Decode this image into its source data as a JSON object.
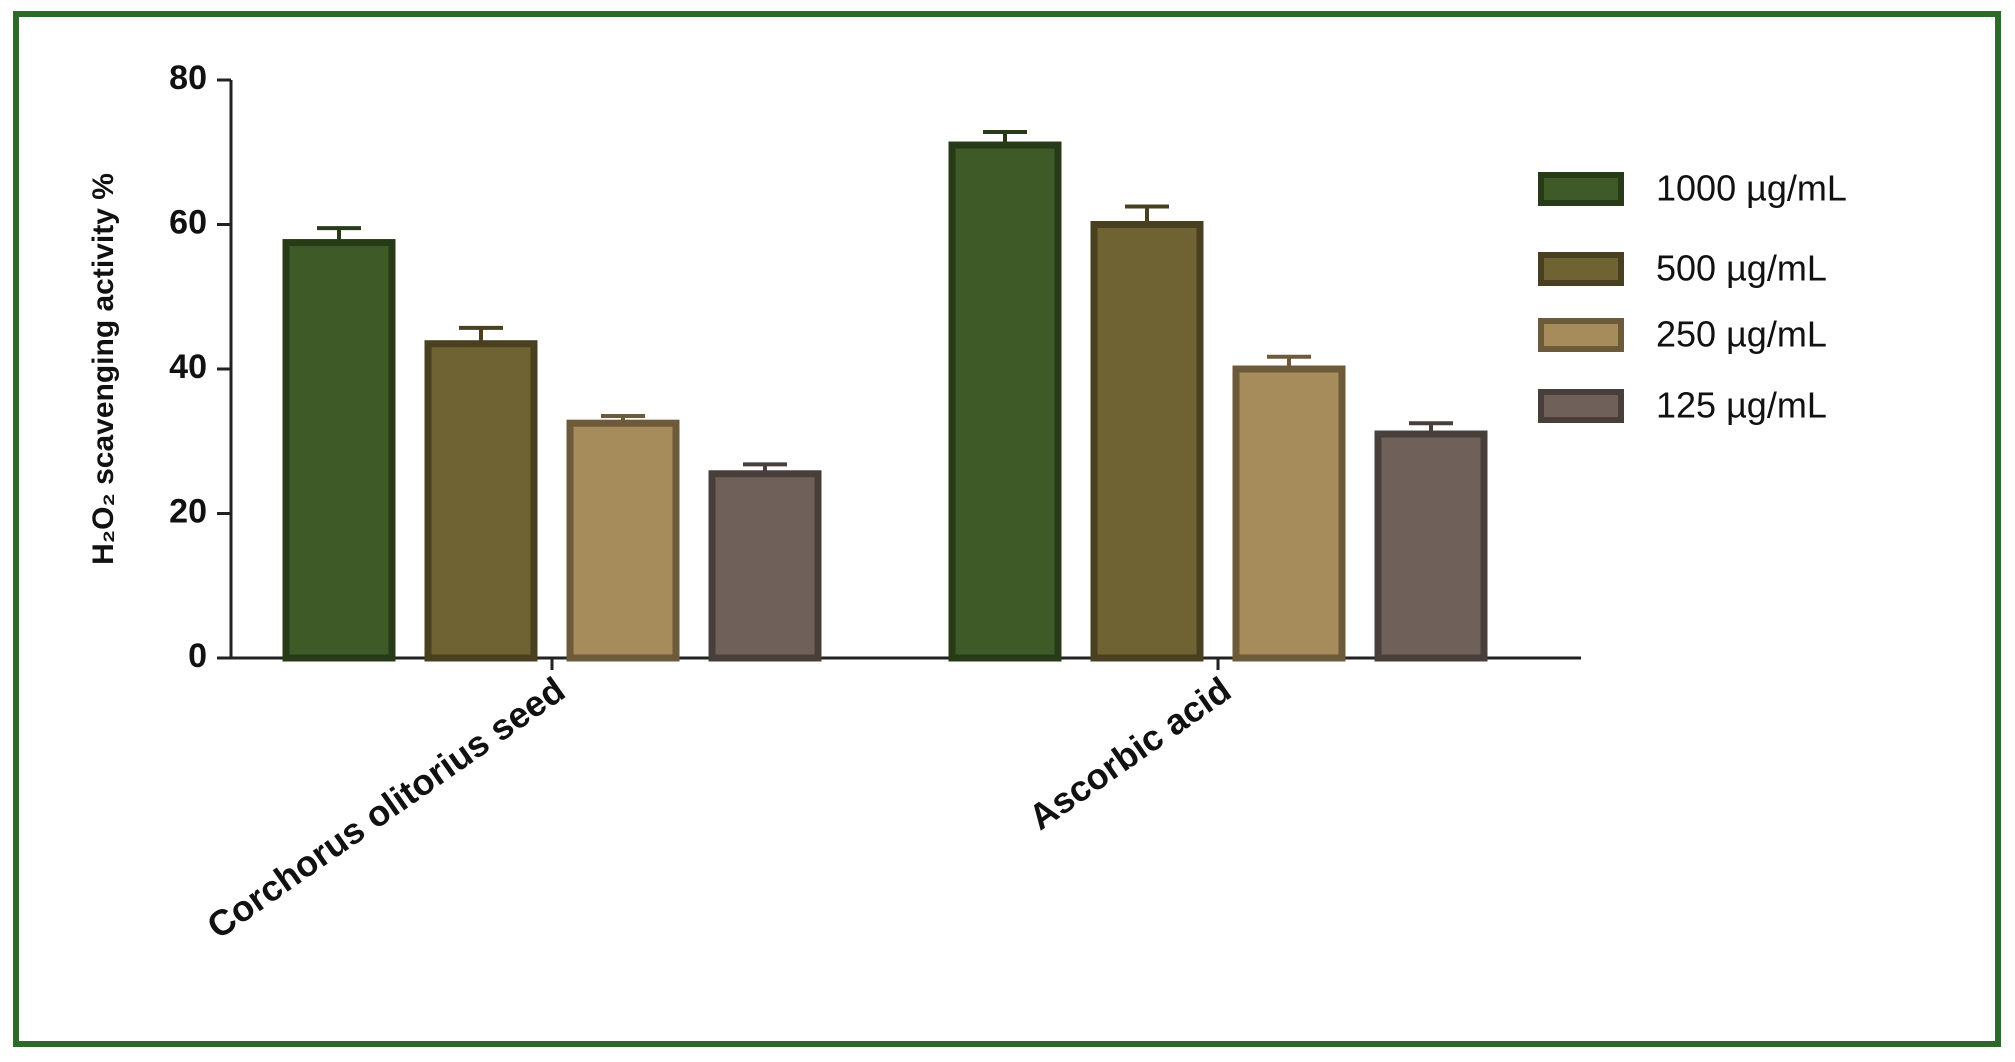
{
  "chart_data": {
    "type": "bar",
    "y_label": "H₂O₂ scavenging activity %",
    "categories": [
      "Corchorus olitorius seed",
      "Ascorbic acid"
    ],
    "series": [
      {
        "name": "1000 µg/mL",
        "color": "#3e5a27",
        "values": [
          57.5,
          71
        ],
        "errors": [
          2,
          1.8
        ]
      },
      {
        "name": "500 µg/mL",
        "color": "#6f6333",
        "values": [
          43.5,
          60
        ],
        "errors": [
          2.2,
          2.5
        ]
      },
      {
        "name": "250 µg/mL",
        "color": "#a68b5b",
        "values": [
          32.5,
          40
        ],
        "errors": [
          1,
          1.7
        ]
      },
      {
        "name": "125 µg/mL",
        "color": "#6f615a",
        "values": [
          25.5,
          31
        ],
        "errors": [
          1.3,
          1.5
        ]
      }
    ],
    "ylim": [
      0,
      80
    ],
    "yticks": [
      0,
      20,
      40,
      60,
      80
    ],
    "legend": "right"
  }
}
